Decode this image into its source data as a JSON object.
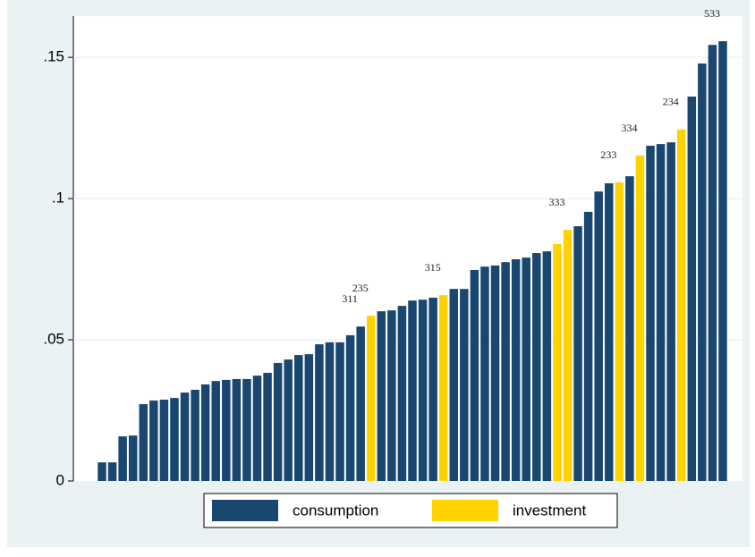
{
  "chart_data": {
    "type": "bar",
    "categories": [
      null,
      null,
      null,
      null,
      null,
      null,
      null,
      null,
      null,
      null,
      null,
      null,
      null,
      null,
      null,
      null,
      null,
      null,
      null,
      null,
      null,
      null,
      null,
      null,
      null,
      "311",
      "235",
      null,
      null,
      null,
      null,
      null,
      null,
      "315",
      null,
      null,
      null,
      null,
      null,
      null,
      null,
      null,
      null,
      null,
      null,
      "333",
      null,
      null,
      null,
      null,
      "233",
      null,
      "334",
      null,
      null,
      null,
      "234",
      null,
      null,
      null,
      "533"
    ],
    "series": [
      {
        "name": "consumption",
        "color": "#1a476f",
        "values": [
          0.0066,
          0.0066,
          0.0158,
          0.0161,
          0.0272,
          0.0285,
          0.0288,
          0.0294,
          0.0313,
          0.0323,
          0.0342,
          0.0354,
          0.0358,
          0.0361,
          0.0361,
          0.0373,
          0.0383,
          0.0418,
          0.043,
          0.0446,
          0.0449,
          0.0484,
          0.0491,
          0.0491,
          0.0516,
          0.0547,
          null,
          0.0601,
          0.0604,
          0.062,
          0.0639,
          0.0642,
          0.0649,
          null,
          0.068,
          0.068,
          0.0747,
          0.0759,
          0.0763,
          0.0775,
          0.0785,
          0.0791,
          0.0807,
          0.0813,
          null,
          null,
          0.0902,
          0.0953,
          0.1025,
          0.1054,
          null,
          0.1079,
          null,
          0.1187,
          0.1193,
          0.1199,
          null,
          0.1361,
          0.1478,
          0.1544,
          0.1557
        ]
      },
      {
        "name": "investment",
        "color": "#ffd200",
        "values": [
          null,
          null,
          null,
          null,
          null,
          null,
          null,
          null,
          null,
          null,
          null,
          null,
          null,
          null,
          null,
          null,
          null,
          null,
          null,
          null,
          null,
          null,
          null,
          null,
          null,
          null,
          0.0585,
          null,
          null,
          null,
          null,
          null,
          null,
          0.0658,
          null,
          null,
          null,
          null,
          null,
          null,
          null,
          null,
          null,
          null,
          0.0839,
          0.0889,
          null,
          null,
          null,
          null,
          0.1057,
          null,
          0.1152,
          null,
          null,
          null,
          0.1244,
          null,
          null,
          null,
          null
        ]
      }
    ],
    "ylim": [
      0,
      0.1646
    ],
    "yticks": [
      0,
      {
        "value": 0.05,
        "label": ".05"
      },
      {
        "value": 0.1,
        "label": ".1"
      },
      {
        "value": 0.15,
        "label": ".15"
      }
    ],
    "grid": true,
    "legend": "bottom"
  }
}
